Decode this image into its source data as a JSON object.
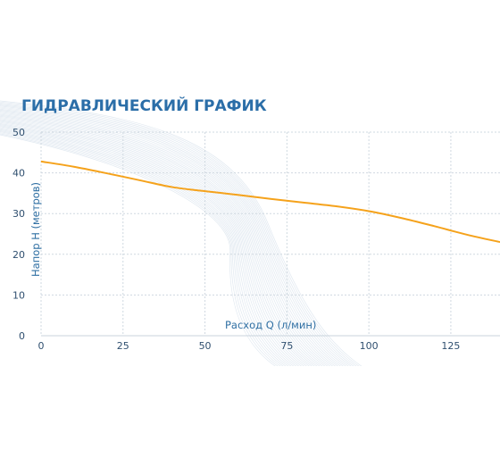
{
  "chart_data": {
    "type": "line",
    "title": "ГИДРАВЛИЧЕСКИЙ ГРАФИК",
    "xlabel": "Расход Q (л/мин)",
    "ylabel": "Напор H (метров)",
    "xlim": [
      0,
      140
    ],
    "ylim": [
      0,
      50
    ],
    "xticks": [
      0,
      25,
      50,
      75,
      100,
      125
    ],
    "yticks": [
      0,
      10,
      20,
      30,
      40,
      50
    ],
    "grid": true,
    "series": [
      {
        "x": [
          0,
          10,
          20,
          30,
          40,
          50,
          60,
          70,
          80,
          90,
          100,
          110,
          120,
          130,
          140
        ],
        "y": [
          42.8,
          41.5,
          39.9,
          38.2,
          36.5,
          35.5,
          34.6,
          33.6,
          32.7,
          31.8,
          30.6,
          28.9,
          26.9,
          24.8,
          23.0
        ],
        "color": "#f5a21b"
      }
    ]
  }
}
